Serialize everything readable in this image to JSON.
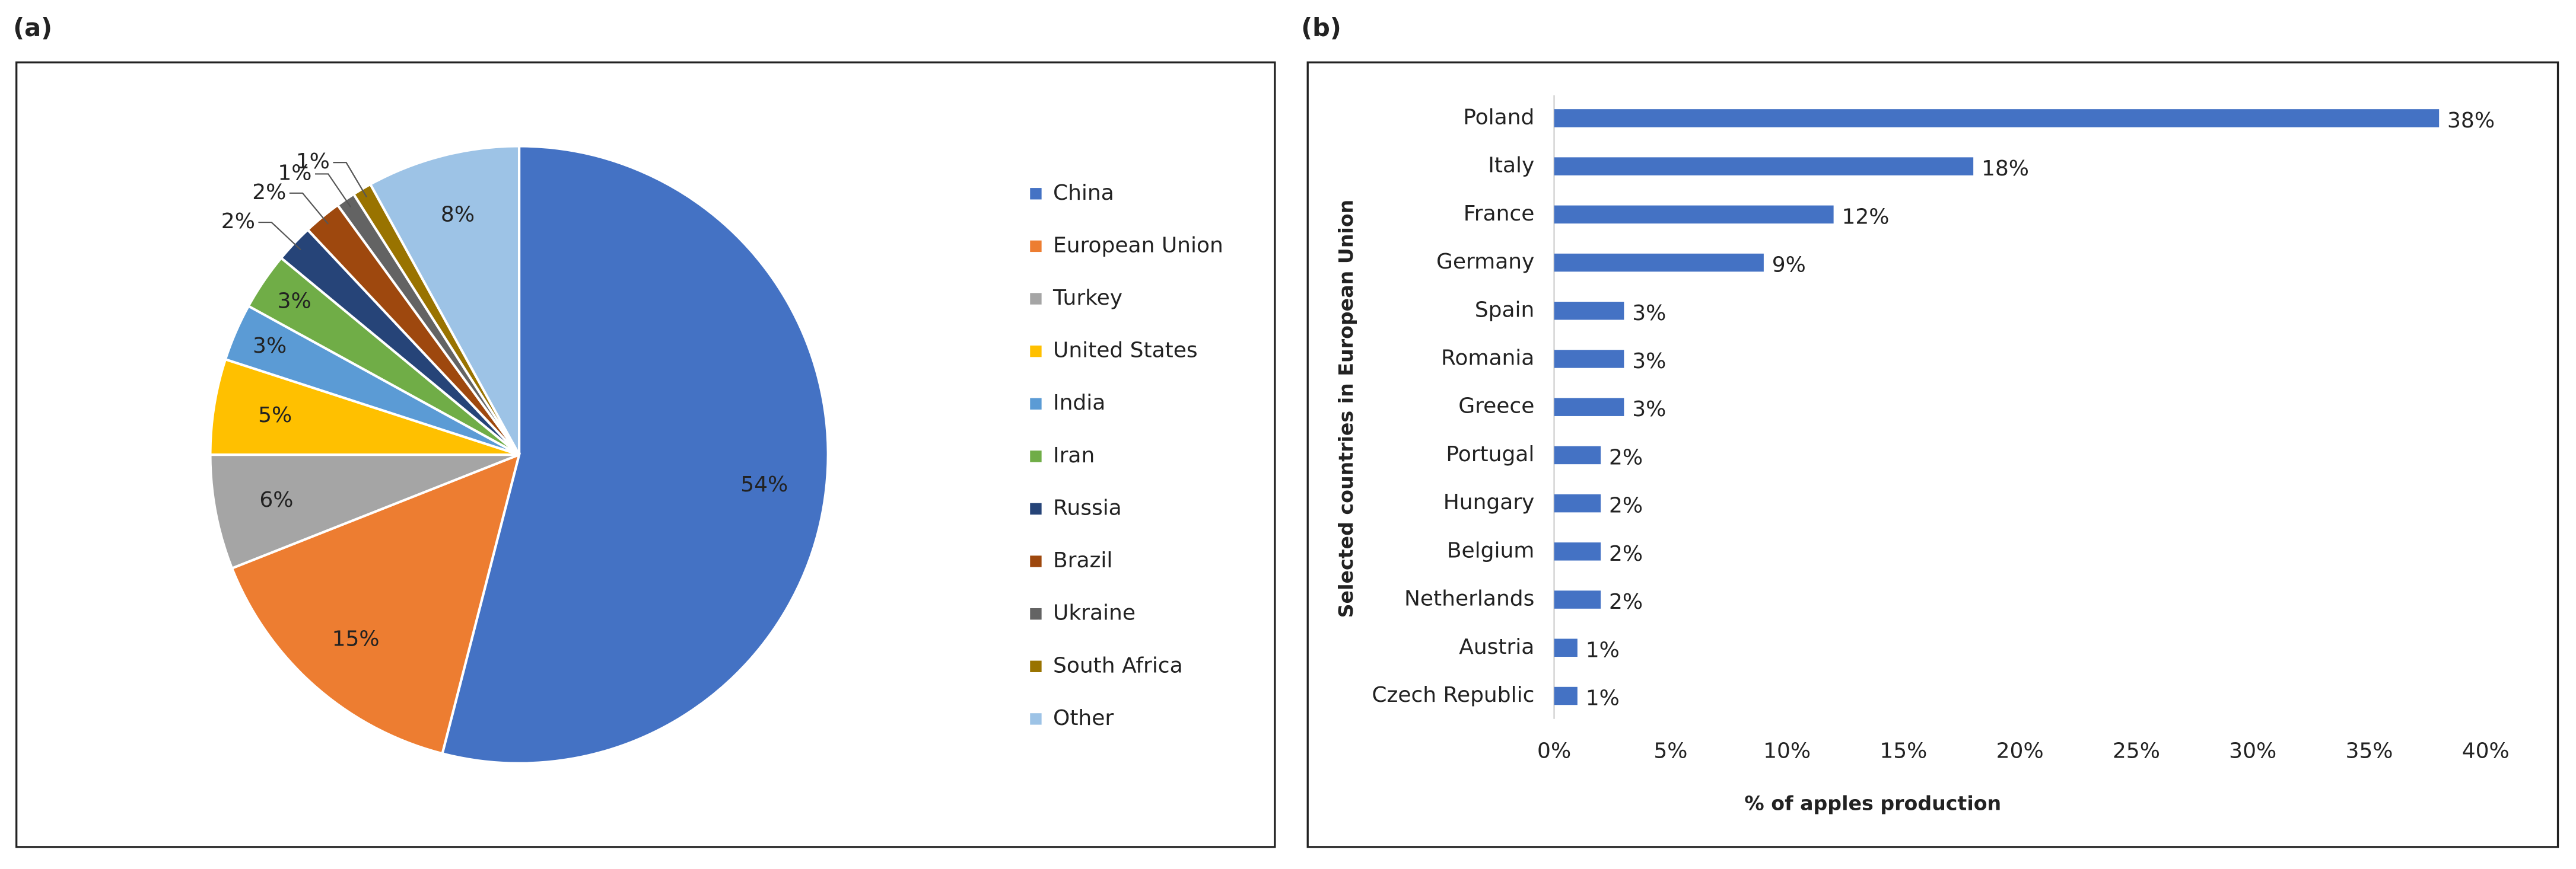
{
  "chart_data": [
    {
      "type": "pie",
      "panel_label": "(a)",
      "categories": [
        "China",
        "European Union",
        "Turkey",
        "United States",
        "India",
        "Iran",
        "Russia",
        "Brazil",
        "Ukraine",
        "South Africa",
        "Other"
      ],
      "values": [
        54,
        15,
        6,
        5,
        3,
        3,
        2,
        2,
        1,
        1,
        8
      ],
      "value_labels": [
        "54%",
        "15%",
        "6%",
        "5%",
        "3%",
        "3%",
        "2%",
        "2%",
        "1%",
        "1%",
        "8%"
      ],
      "colors": [
        "#4472c4",
        "#ed7d31",
        "#a5a5a5",
        "#ffc000",
        "#5b9bd5",
        "#70ad47",
        "#264478",
        "#9e480e",
        "#636363",
        "#997300",
        "#9dc3e6"
      ],
      "legend": "right"
    },
    {
      "type": "hbar",
      "panel_label": "(b)",
      "categories": [
        "Poland",
        "Italy",
        "France",
        "Germany",
        "Spain",
        "Romania",
        "Greece",
        "Portugal",
        "Hungary",
        "Belgium",
        "Netherlands",
        "Austria",
        "Czech Republic"
      ],
      "values": [
        38,
        18,
        12,
        9,
        3,
        3,
        3,
        2,
        2,
        2,
        2,
        1,
        1
      ],
      "value_labels": [
        "38%",
        "18%",
        "12%",
        "9%",
        "3%",
        "3%",
        "3%",
        "2%",
        "2%",
        "2%",
        "2%",
        "1%",
        "1%"
      ],
      "color": "#4472c4",
      "xlim": [
        0,
        40
      ],
      "xticks": [
        {
          "value": 0,
          "label": "0%"
        },
        {
          "value": 5,
          "label": "5%"
        },
        {
          "value": 10,
          "label": "10%"
        },
        {
          "value": 15,
          "label": "15%"
        },
        {
          "value": 20,
          "label": "20%"
        },
        {
          "value": 25,
          "label": "25%"
        },
        {
          "value": 30,
          "label": "30%"
        },
        {
          "value": 35,
          "label": "35%"
        },
        {
          "value": 40,
          "label": "40%"
        }
      ],
      "xlabel": "% of apples production",
      "ylabel": "Selected countries in European Union",
      "grid": false
    }
  ]
}
